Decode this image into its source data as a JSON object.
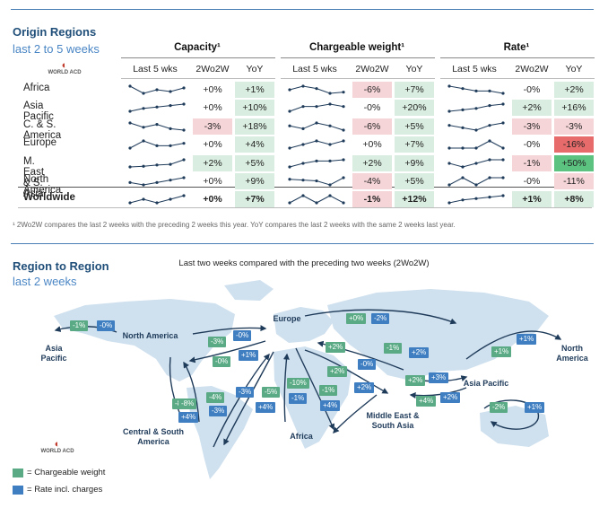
{
  "top_section": {
    "title": "Origin Regions",
    "subtitle": "last 2 to 5 weeks",
    "logo_text": "WORLD ACD",
    "groups": [
      {
        "title": "Capacity¹",
        "cols": [
          "Last 5 wks",
          "2Wo2W",
          "YoY"
        ]
      },
      {
        "title": "Chargeable weight¹",
        "cols": [
          "Last 5 wks",
          "2Wo2W",
          "YoY"
        ]
      },
      {
        "title": "Rate¹",
        "cols": [
          "Last 5 wks",
          "2Wo2W",
          "YoY"
        ]
      }
    ],
    "footnote": "¹ 2Wo2W compares the last 2 weeks with the preceding 2 weeks this year. YoY compares the last 2 weeks with the same 2 weeks last year."
  },
  "chart_data": [
    {
      "type": "table",
      "title": "Origin Regions — last 2 to 5 weeks",
      "regions": [
        "Africa",
        "Asia Pacific",
        "C. & S. America",
        "Europe",
        "M. East & S. Asia",
        "North America",
        "Worldwide"
      ],
      "capacity": {
        "sparklines": [
          [
            5.0,
            4.6,
            4.8,
            4.7,
            4.9
          ],
          [
            4.6,
            4.8,
            4.9,
            5.0,
            5.1
          ],
          [
            5.2,
            4.9,
            5.1,
            4.8,
            4.7
          ],
          [
            4.7,
            5.0,
            4.8,
            4.8,
            4.9
          ],
          [
            4.5,
            4.6,
            4.8,
            4.9,
            5.6
          ],
          [
            4.8,
            4.7,
            4.8,
            4.9,
            5.0
          ],
          [
            4.8,
            4.9,
            4.8,
            4.9,
            5.0
          ]
        ],
        "wow": [
          "+0%",
          "+0%",
          "-3%",
          "+0%",
          "+2%",
          "+0%",
          "+0%"
        ],
        "yoy": [
          "+1%",
          "+10%",
          "+18%",
          "+4%",
          "+5%",
          "+9%",
          "+7%"
        ]
      },
      "chargeable_weight": {
        "sparklines": [
          [
            5.0,
            5.3,
            5.1,
            4.7,
            4.8
          ],
          [
            4.7,
            4.9,
            4.9,
            5.0,
            4.9
          ],
          [
            5.0,
            4.8,
            5.2,
            5.0,
            4.7
          ],
          [
            4.8,
            4.9,
            5.0,
            4.9,
            5.0
          ],
          [
            4.5,
            4.8,
            5.0,
            5.0,
            5.1
          ],
          [
            5.0,
            4.9,
            4.8,
            4.3,
            5.2
          ],
          [
            4.8,
            4.9,
            4.8,
            4.9,
            4.8
          ]
        ],
        "wow": [
          "-6%",
          "-0%",
          "-6%",
          "+0%",
          "+2%",
          "-4%",
          "-1%"
        ],
        "yoy": [
          "+7%",
          "+20%",
          "+5%",
          "+7%",
          "+9%",
          "+5%",
          "+12%"
        ]
      },
      "rate": {
        "sparklines": [
          [
            5.0,
            4.9,
            4.8,
            4.8,
            4.7
          ],
          [
            4.6,
            4.7,
            4.8,
            5.0,
            5.1
          ],
          [
            5.0,
            4.9,
            4.8,
            5.0,
            5.1
          ],
          [
            4.9,
            4.9,
            4.9,
            5.0,
            4.9
          ],
          [
            4.9,
            4.8,
            4.9,
            5.0,
            5.0
          ],
          [
            4.9,
            5.0,
            4.9,
            5.0,
            5.0
          ],
          [
            4.6,
            4.8,
            4.9,
            5.0,
            5.1
          ]
        ],
        "wow": [
          "-0%",
          "+2%",
          "-3%",
          "-0%",
          "-1%",
          "-0%",
          "+1%"
        ],
        "yoy": [
          "+2%",
          "+16%",
          "-3%",
          "-16%",
          "+50%",
          "-11%",
          "+8%"
        ]
      }
    },
    {
      "type": "flow_map",
      "title": "Region to Region",
      "subtitle": "last 2 weeks",
      "caption": "Last two weeks compared with the preceding two weeks (2Wo2W)",
      "regions": [
        "North America",
        "Asia Pacific",
        "Europe",
        "Central & South America",
        "Africa",
        "Middle East & South Asia",
        "Asia Pacific",
        "North America"
      ],
      "flows": [
        {
          "route": "North America → Asia Pacific",
          "chargeable_weight": "-1%",
          "rate": "-0%"
        },
        {
          "route": "Europe → Asia Pacific (north)",
          "chargeable_weight": "+0%",
          "rate": "-2%"
        },
        {
          "route": "North America → Europe",
          "chargeable_weight": "-3%",
          "rate": "-0%"
        },
        {
          "route": "Europe → North America",
          "chargeable_weight": "-0%",
          "rate": "+1%"
        },
        {
          "route": "Europe → Middle East & South Asia",
          "chargeable_weight": "+2%",
          "rate": "-0%"
        },
        {
          "route": "Middle East & South Asia → Europe",
          "chargeable_weight": "-1%",
          "rate": "+2%"
        },
        {
          "route": "Asia Pacific → North America",
          "chargeable_weight": "+1%",
          "rate": "+1%"
        },
        {
          "route": "Europe → Africa",
          "chargeable_weight": "+2%",
          "rate": "+2%"
        },
        {
          "route": "Middle East & South Asia → Asia Pacific",
          "chargeable_weight": "+2%",
          "rate": "+3%"
        },
        {
          "route": "Asia Pacific → Middle East & South Asia",
          "chargeable_weight": "+4%",
          "rate": "+2%"
        },
        {
          "route": "North America → Central & South America",
          "chargeable_weight": "-8%",
          "rate": "-3%"
        },
        {
          "route": "Central & South America → North America",
          "chargeable_weight": "-8%",
          "rate": "+4%"
        },
        {
          "route": "Europe → Central & South America",
          "chargeable_weight": "-4%",
          "rate": "-3%"
        },
        {
          "route": "Central & South America → Europe",
          "chargeable_weight": "-5%",
          "rate": "+4%"
        },
        {
          "route": "Africa → Europe",
          "chargeable_weight": "-10%",
          "rate": "-1%"
        },
        {
          "route": "Middle East & South Asia → Africa",
          "chargeable_weight": "-1%",
          "rate": "+4%"
        },
        {
          "route": "Intra Asia Pacific",
          "chargeable_weight": "-2%",
          "rate": "+1%"
        }
      ],
      "legend": [
        {
          "label": "Chargeable weight",
          "color": "#5aab85"
        },
        {
          "label": "Rate incl. charges",
          "color": "#3f7fc1"
        }
      ]
    }
  ],
  "colors": {
    "pos": "#d9ede0",
    "neg": "#f6d5d8",
    "strong_pos": "#5cc280",
    "strong_neg": "#e86b6b",
    "green_tag": "#5aab85",
    "blue_tag": "#3f7fc1"
  }
}
